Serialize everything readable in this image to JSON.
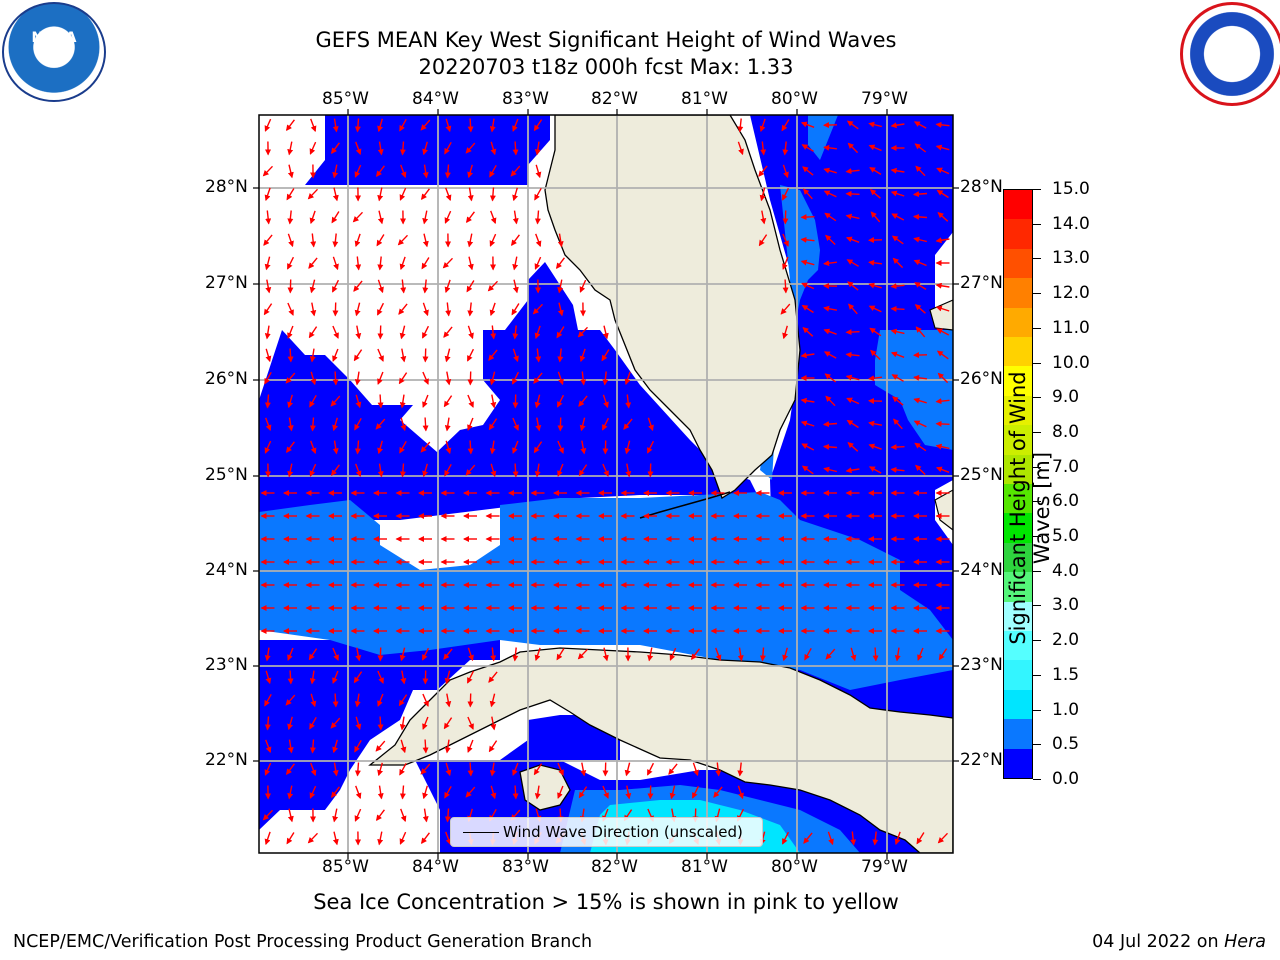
{
  "title_line1": "GEFS MEAN Key West Significant Height of Wind Waves",
  "title_line2": "20220703 t18z 000h fcst   Max: 1.33",
  "lon_labels": [
    "85°W",
    "84°W",
    "83°W",
    "82°W",
    "81°W",
    "80°W",
    "79°W"
  ],
  "lat_labels": [
    "28°N",
    "27°N",
    "26°N",
    "25°N",
    "24°N",
    "23°N",
    "22°N"
  ],
  "legend_label": "Wind Wave Direction (unscaled)",
  "ice_note": "Sea Ice Concentration > 15% is shown in pink to yellow",
  "footer_left": "NCEP/EMC/Verification Post Processing Product Generation Branch",
  "footer_right_date": "04 Jul 2022 on",
  "footer_right_machine": "Hera",
  "colorbar": {
    "title": "Significant Height of Wind Waves [m]",
    "ticks": [
      "15.0",
      "14.0",
      "13.0",
      "12.0",
      "11.0",
      "10.0",
      "9.0",
      "8.0",
      "7.0",
      "6.0",
      "5.0",
      "4.0",
      "3.0",
      "2.0",
      "1.5",
      "1.0",
      "0.5",
      "0.0"
    ],
    "colors": [
      "#0000ff",
      "#0a78ff",
      "#00e5ff",
      "#33f5ff",
      "#55ffff",
      "#a0ffff",
      "#55f57a",
      "#2ed33e",
      "#00e600",
      "#55e600",
      "#aee600",
      "#ccee00",
      "#e6f000",
      "#ffff00",
      "#ffd200",
      "#ffaa00",
      "#ff8000",
      "#ff5000",
      "#ff2800",
      "#ff0000"
    ]
  },
  "logos": {
    "left": "NOAA",
    "right": "NATIONAL WEATHER SERVICE"
  },
  "colors": {
    "land": "#eeecdc",
    "low_wave": "#0000ff",
    "mid_wave": "#0a78ff",
    "high_wave": "#00e5ff",
    "arrow": "#ff0000",
    "grid": "#b0b0b0"
  }
}
